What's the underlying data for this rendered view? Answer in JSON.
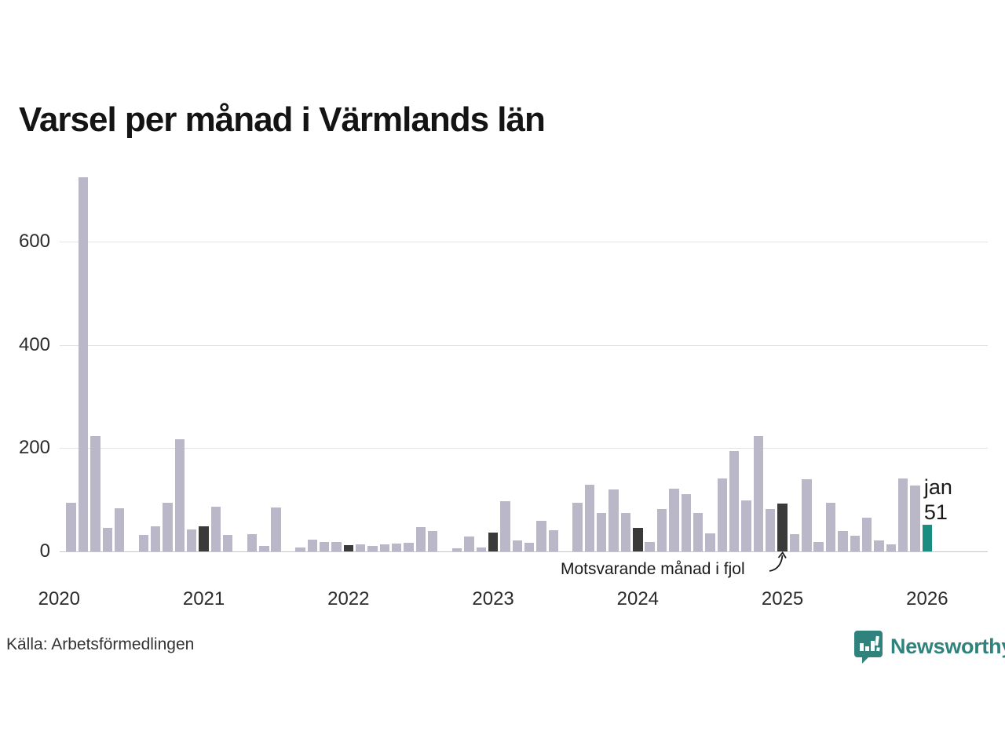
{
  "chart_data": {
    "type": "bar",
    "title": "Varsel per månad i Värmlands län",
    "xlabel": "",
    "ylabel": "",
    "ylim": [
      0,
      743
    ],
    "yticks": [
      0,
      200,
      400,
      600
    ],
    "grid": "horizontal",
    "legend": "none",
    "bar_colors": {
      "n": "#b9b7c8",
      "j": "#3a3a3a",
      "c": "#1b8c80"
    },
    "bar_kind_meaning": {
      "n": "ordinary month",
      "j": "january (comparison month)",
      "c": "latest month (highlighted)"
    },
    "points": [
      [
        "2020-01",
        0,
        "j"
      ],
      [
        "2020-02",
        95,
        "n"
      ],
      [
        "2020-03",
        725,
        "n"
      ],
      [
        "2020-04",
        224,
        "n"
      ],
      [
        "2020-05",
        46,
        "n"
      ],
      [
        "2020-06",
        84,
        "n"
      ],
      [
        "2020-07",
        0,
        "n"
      ],
      [
        "2020-08",
        32,
        "n"
      ],
      [
        "2020-09",
        48,
        "n"
      ],
      [
        "2020-10",
        95,
        "n"
      ],
      [
        "2020-11",
        218,
        "n"
      ],
      [
        "2020-12",
        42,
        "n"
      ],
      [
        "2021-01",
        48,
        "j"
      ],
      [
        "2021-02",
        86,
        "n"
      ],
      [
        "2021-03",
        32,
        "n"
      ],
      [
        "2021-04",
        0,
        "n"
      ],
      [
        "2021-05",
        33,
        "n"
      ],
      [
        "2021-06",
        10,
        "n"
      ],
      [
        "2021-07",
        85,
        "n"
      ],
      [
        "2021-08",
        0,
        "n"
      ],
      [
        "2021-09",
        7,
        "n"
      ],
      [
        "2021-10",
        23,
        "n"
      ],
      [
        "2021-11",
        19,
        "n"
      ],
      [
        "2021-12",
        19,
        "n"
      ],
      [
        "2022-01",
        12,
        "j"
      ],
      [
        "2022-02",
        14,
        "n"
      ],
      [
        "2022-03",
        10,
        "n"
      ],
      [
        "2022-04",
        13,
        "n"
      ],
      [
        "2022-05",
        15,
        "n"
      ],
      [
        "2022-06",
        17,
        "n"
      ],
      [
        "2022-07",
        47,
        "n"
      ],
      [
        "2022-08",
        39,
        "n"
      ],
      [
        "2022-09",
        0,
        "n"
      ],
      [
        "2022-10",
        6,
        "n"
      ],
      [
        "2022-11",
        29,
        "n"
      ],
      [
        "2022-12",
        8,
        "n"
      ],
      [
        "2023-01",
        36,
        "j"
      ],
      [
        "2023-02",
        98,
        "n"
      ],
      [
        "2023-03",
        22,
        "n"
      ],
      [
        "2023-04",
        16,
        "n"
      ],
      [
        "2023-05",
        60,
        "n"
      ],
      [
        "2023-06",
        41,
        "n"
      ],
      [
        "2023-07",
        0,
        "n"
      ],
      [
        "2023-08",
        95,
        "n"
      ],
      [
        "2023-09",
        129,
        "n"
      ],
      [
        "2023-10",
        75,
        "n"
      ],
      [
        "2023-11",
        120,
        "n"
      ],
      [
        "2023-12",
        75,
        "n"
      ],
      [
        "2024-01",
        45,
        "j"
      ],
      [
        "2024-02",
        19,
        "n"
      ],
      [
        "2024-03",
        82,
        "n"
      ],
      [
        "2024-04",
        121,
        "n"
      ],
      [
        "2024-05",
        111,
        "n"
      ],
      [
        "2024-06",
        75,
        "n"
      ],
      [
        "2024-07",
        35,
        "n"
      ],
      [
        "2024-08",
        141,
        "n"
      ],
      [
        "2024-09",
        194,
        "n"
      ],
      [
        "2024-10",
        99,
        "n"
      ],
      [
        "2024-11",
        224,
        "n"
      ],
      [
        "2024-12",
        82,
        "n"
      ],
      [
        "2025-01",
        93,
        "j"
      ],
      [
        "2025-02",
        33,
        "n"
      ],
      [
        "2025-03",
        140,
        "n"
      ],
      [
        "2025-04",
        18,
        "n"
      ],
      [
        "2025-05",
        95,
        "n"
      ],
      [
        "2025-06",
        39,
        "n"
      ],
      [
        "2025-07",
        31,
        "n"
      ],
      [
        "2025-08",
        65,
        "n"
      ],
      [
        "2025-09",
        22,
        "n"
      ],
      [
        "2025-10",
        14,
        "n"
      ],
      [
        "2025-11",
        141,
        "n"
      ],
      [
        "2025-12",
        127,
        "n"
      ],
      [
        "2026-01",
        51,
        "c"
      ]
    ],
    "xtick_years": [
      "2020",
      "2021",
      "2022",
      "2023",
      "2024",
      "2025",
      "2026"
    ]
  },
  "annotation": {
    "text": "Motsvarande månad i fjol",
    "target_month": "2025-01"
  },
  "current_label": {
    "month": "jan",
    "value": "51"
  },
  "source": {
    "text": "Källa: Arbetsförmedlingen"
  },
  "branding": {
    "name": "Newsworthy",
    "color": "#2f837c"
  }
}
